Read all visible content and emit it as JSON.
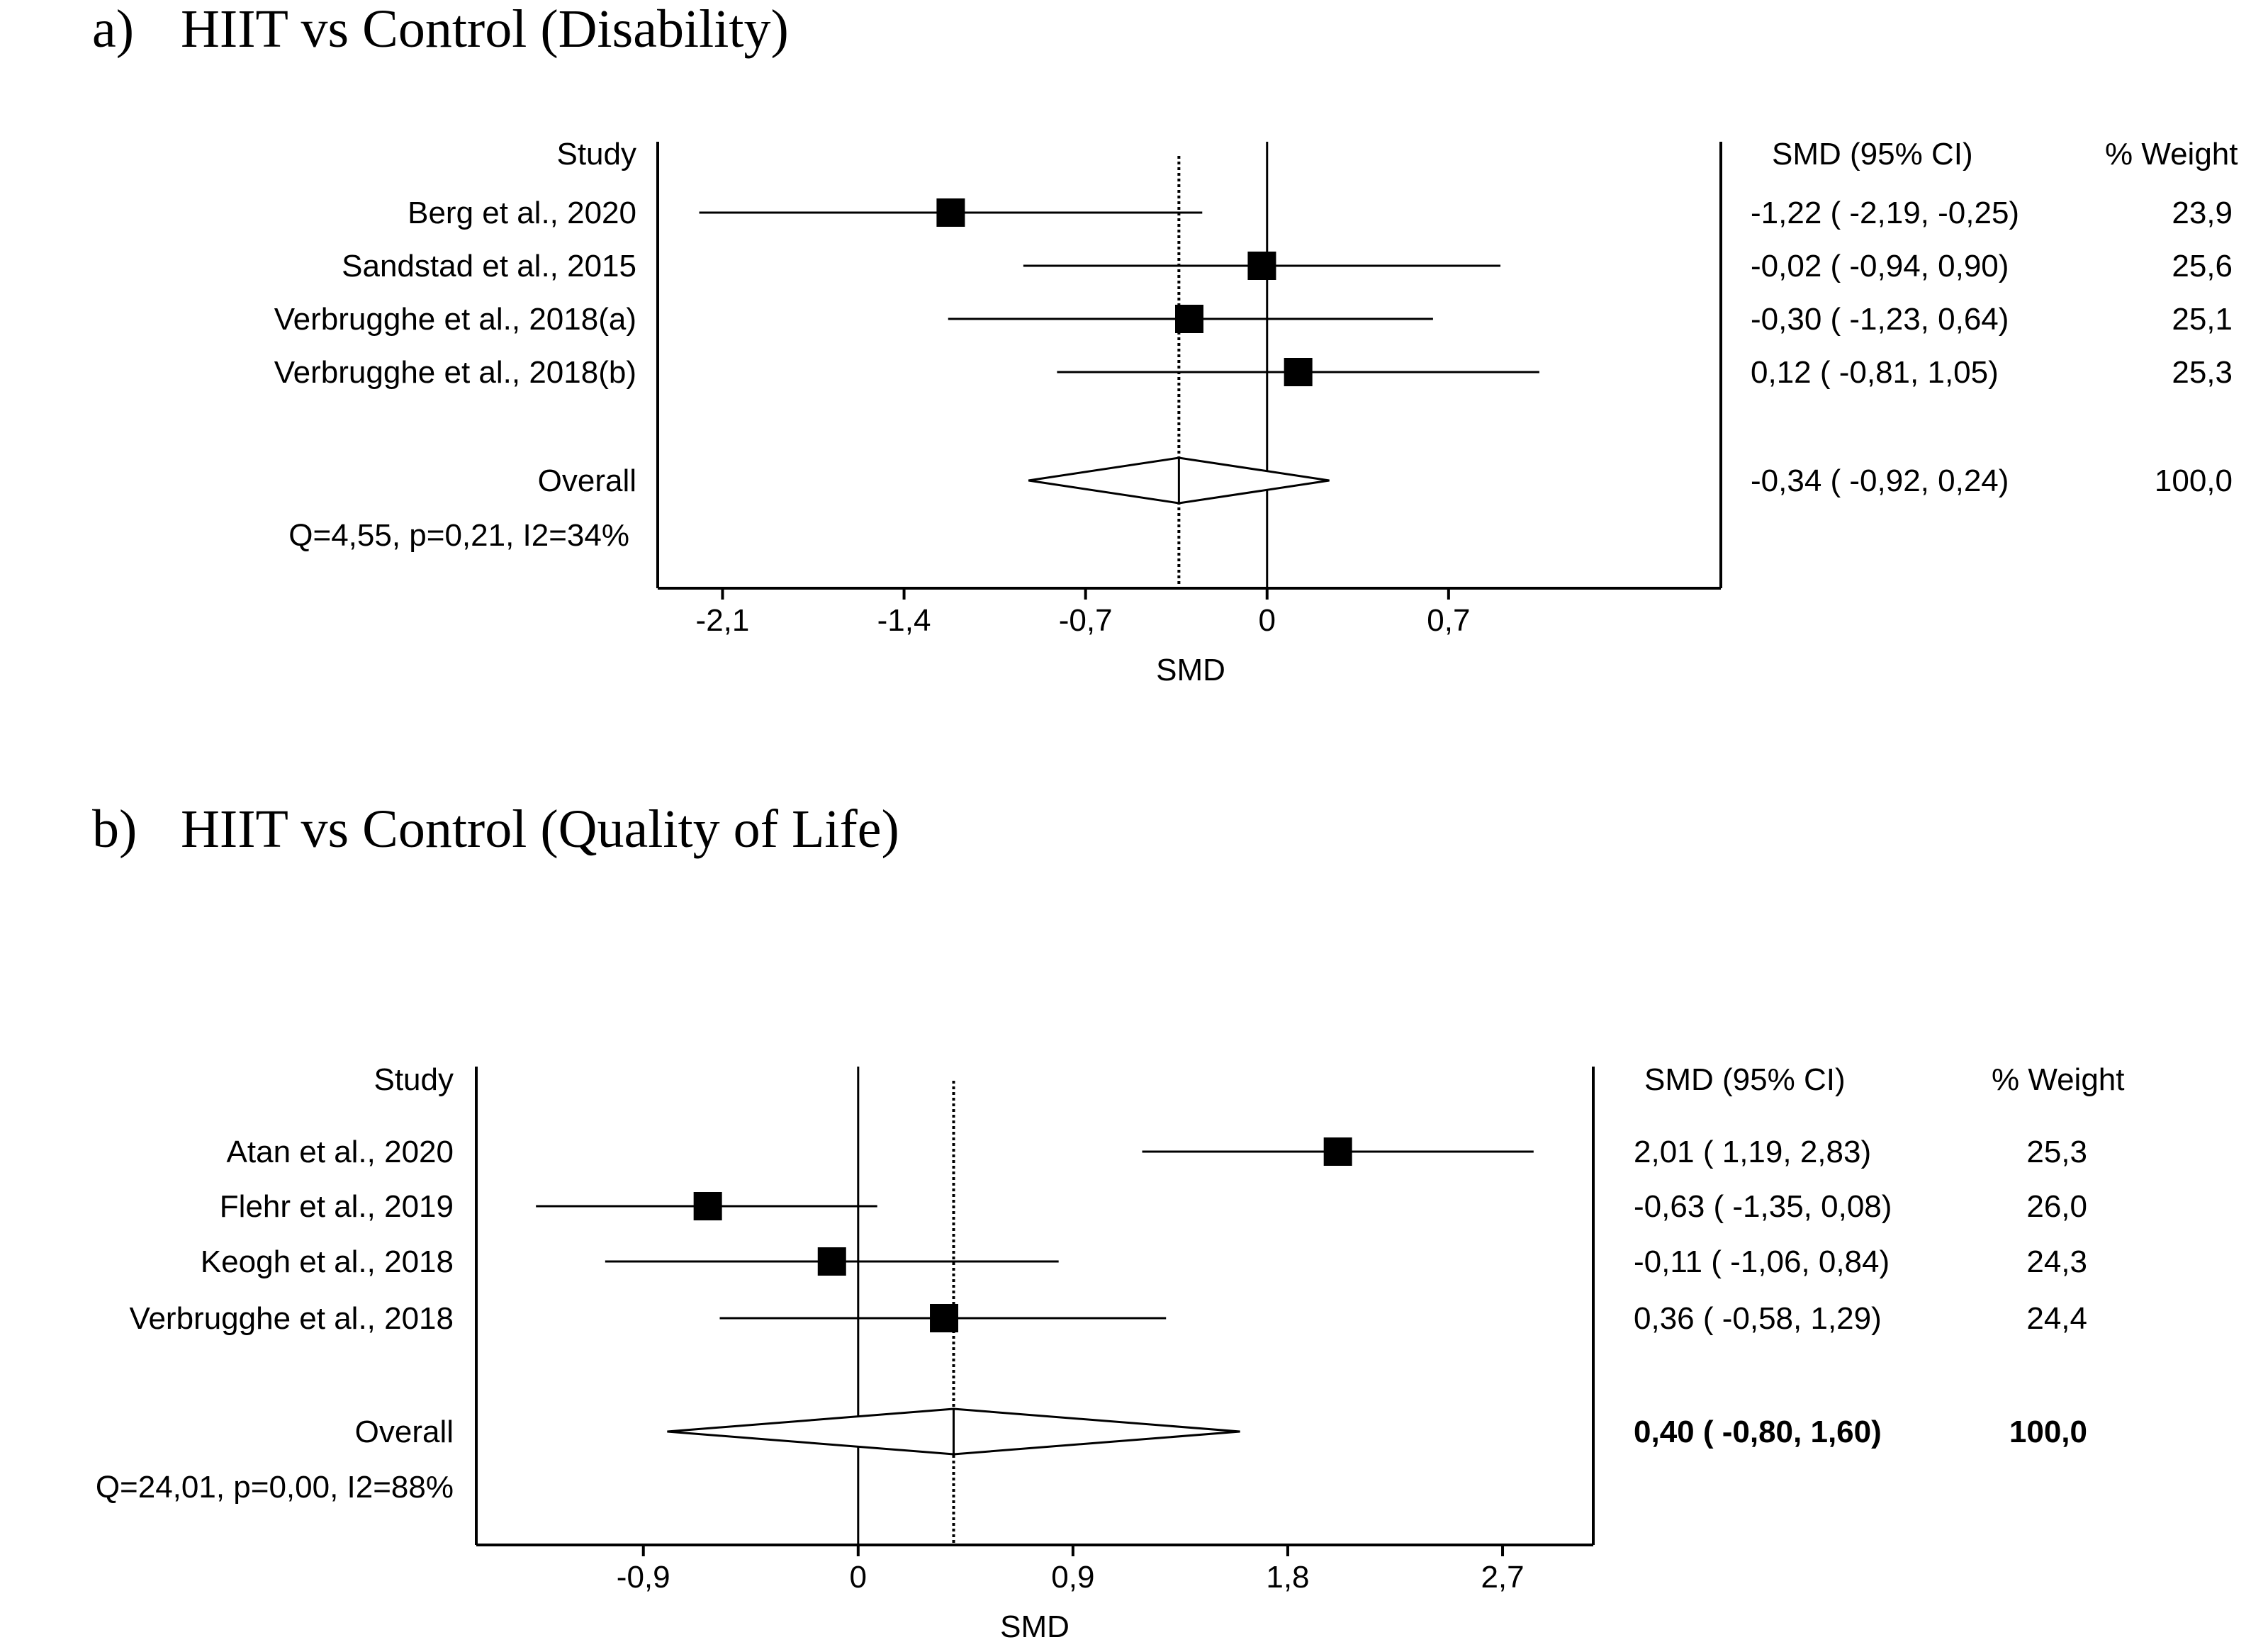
{
  "chart_data": [
    {
      "type": "forest",
      "panel_label": "a)",
      "title": "HIIT vs Control (Disability)",
      "xlabel": "SMD",
      "xlim": [
        -2.35,
        1.75
      ],
      "xticks": [
        -2.1,
        -1.4,
        -0.7,
        0,
        0.7
      ],
      "xtick_labels": [
        "-2,1",
        "-1,4",
        "-0,7",
        "0",
        "0,7"
      ],
      "header_study": "Study",
      "header_ci": "SMD (95% CI)",
      "header_weight": "% Weight",
      "studies": [
        {
          "name": "Berg et al., 2020",
          "smd": -1.22,
          "lo": -2.19,
          "hi": -0.25,
          "ci_text": "-1,22  ( -2,19, -0,25)",
          "weight": 23.9,
          "weight_text": "23,9"
        },
        {
          "name": "Sandstad et al., 2015",
          "smd": -0.02,
          "lo": -0.94,
          "hi": 0.9,
          "ci_text": "-0,02  ( -0,94,  0,90)",
          "weight": 25.6,
          "weight_text": "25,6"
        },
        {
          "name": "Verbrugghe et al., 2018(a)",
          "smd": -0.3,
          "lo": -1.23,
          "hi": 0.64,
          "ci_text": "-0,30  ( -1,23,  0,64)",
          "weight": 25.1,
          "weight_text": "25,1"
        },
        {
          "name": "Verbrugghe et al., 2018(b)",
          "smd": 0.12,
          "lo": -0.81,
          "hi": 1.05,
          "ci_text": "0,12  ( -0,81,  1,05)",
          "weight": 25.3,
          "weight_text": "25,3"
        }
      ],
      "overall": {
        "name": "Overall",
        "smd": -0.34,
        "lo": -0.92,
        "hi": 0.24,
        "ci_text": "-0,34  ( -0,92,  0,24)",
        "weight_text": "100,0",
        "bold": false
      },
      "heterogeneity": "Q=4,55, p=0,21, I2=34%"
    },
    {
      "type": "forest",
      "panel_label": "b)",
      "title": "HIIT vs Control (Quality of Life)",
      "xlabel": "SMD",
      "xlim": [
        -1.6,
        3.08
      ],
      "xticks": [
        -0.9,
        0,
        0.9,
        1.8,
        2.7
      ],
      "xtick_labels": [
        "-0,9",
        "0",
        "0,9",
        "1,8",
        "2,7"
      ],
      "header_study": "Study",
      "header_ci": "SMD (95% CI)",
      "header_weight": "% Weight",
      "studies": [
        {
          "name": "Atan et al., 2020",
          "smd": 2.01,
          "lo": 1.19,
          "hi": 2.83,
          "ci_text": "2,01  (  1,19,  2,83)",
          "weight": 25.3,
          "weight_text": "25,3"
        },
        {
          "name": "Flehr et al., 2019",
          "smd": -0.63,
          "lo": -1.35,
          "hi": 0.08,
          "ci_text": "-0,63  ( -1,35,  0,08)",
          "weight": 26.0,
          "weight_text": "26,0"
        },
        {
          "name": "Keogh et al., 2018",
          "smd": -0.11,
          "lo": -1.06,
          "hi": 0.84,
          "ci_text": "-0,11  ( -1,06,  0,84)",
          "weight": 24.3,
          "weight_text": "24,3"
        },
        {
          "name": "Verbrugghe et al., 2018",
          "smd": 0.36,
          "lo": -0.58,
          "hi": 1.29,
          "ci_text": "0,36  ( -0,58,  1,29)",
          "weight": 24.4,
          "weight_text": "24,4"
        }
      ],
      "overall": {
        "name": "Overall",
        "smd": 0.4,
        "lo": -0.8,
        "hi": 1.6,
        "ci_text": "0,40  ( -0,80,  1,60)",
        "weight_text": "100,0",
        "bold": true
      },
      "heterogeneity": "Q=24,01, p=0,00, I2=88%"
    }
  ]
}
